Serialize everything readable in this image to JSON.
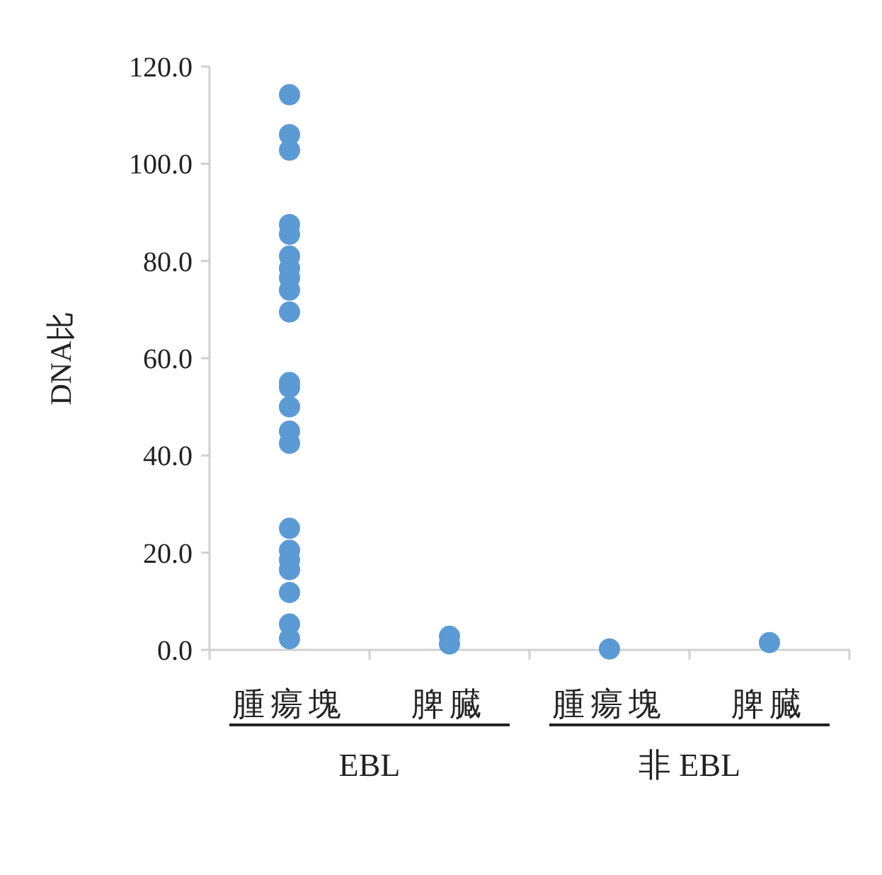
{
  "chart_data": {
    "type": "scatter",
    "ylabel": "DNA比",
    "annotations": [
      "EBL",
      "非 EBL"
    ],
    "categories": [
      "腫瘍塊",
      "脾臓",
      "腫瘍塊",
      "脾臓"
    ],
    "ylim": [
      0,
      120
    ],
    "yticks": [
      {
        "value": 0,
        "label": "0.0"
      },
      {
        "value": 20,
        "label": "20.0"
      },
      {
        "value": 40,
        "label": "40.0"
      },
      {
        "value": 60,
        "label": "60.0"
      },
      {
        "value": 80,
        "label": "80.0"
      },
      {
        "value": 100,
        "label": "100.0"
      },
      {
        "value": 120,
        "label": "120.0"
      }
    ],
    "marker": "circle",
    "series": [
      {
        "color": "#5b9bd5",
        "values": [
          114.2,
          2.8,
          0.2,
          1.5
        ]
      },
      {
        "color": "#5b9bd5",
        "values": [
          106,
          1.2,
          null,
          null
        ]
      },
      {
        "color": "#5b9bd5",
        "values": [
          102.8,
          null,
          null,
          null
        ]
      },
      {
        "color": "#5b9bd5",
        "values": [
          87.5,
          null,
          null,
          null
        ]
      },
      {
        "color": "#5b9bd5",
        "values": [
          85.5,
          null,
          null,
          null
        ]
      },
      {
        "color": "#5b9bd5",
        "values": [
          81,
          null,
          null,
          null
        ]
      },
      {
        "color": "#5b9bd5",
        "values": [
          78.5,
          null,
          null,
          null
        ]
      },
      {
        "color": "#5b9bd5",
        "values": [
          76.5,
          null,
          null,
          null
        ]
      },
      {
        "color": "#5b9bd5",
        "values": [
          74,
          null,
          null,
          null
        ]
      },
      {
        "color": "#5b9bd5",
        "values": [
          69.5,
          null,
          null,
          null
        ]
      },
      {
        "color": "#5b9bd5",
        "values": [
          55,
          null,
          null,
          null
        ]
      },
      {
        "color": "#5b9bd5",
        "values": [
          54,
          null,
          null,
          null
        ]
      },
      {
        "color": "#5b9bd5",
        "values": [
          50,
          null,
          null,
          null
        ]
      },
      {
        "color": "#5b9bd5",
        "values": [
          45,
          null,
          null,
          null
        ]
      },
      {
        "color": "#5b9bd5",
        "values": [
          42.5,
          null,
          null,
          null
        ]
      },
      {
        "color": "#5b9bd5",
        "values": [
          25,
          null,
          null,
          null
        ]
      },
      {
        "color": "#5b9bd5",
        "values": [
          20.5,
          null,
          null,
          null
        ]
      },
      {
        "color": "#5b9bd5",
        "values": [
          18.5,
          null,
          null,
          null
        ]
      },
      {
        "color": "#5b9bd5",
        "values": [
          16.5,
          null,
          null,
          null
        ]
      },
      {
        "color": "#5b9bd5",
        "values": [
          11.8,
          null,
          null,
          null
        ]
      },
      {
        "color": "#5b9bd5",
        "values": [
          5.3,
          null,
          null,
          null
        ]
      },
      {
        "color": "#5b9bd5",
        "values": [
          2.3,
          null,
          null,
          null
        ]
      }
    ]
  }
}
